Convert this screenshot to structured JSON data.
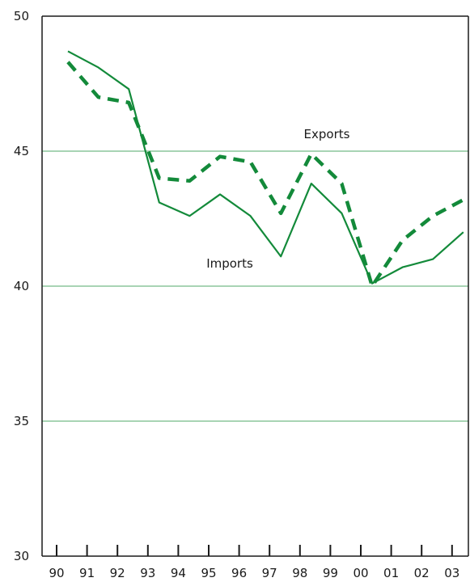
{
  "chart_data": {
    "type": "line",
    "categories": [
      "90",
      "91",
      "92",
      "93",
      "94",
      "95",
      "96",
      "97",
      "98",
      "99",
      "00",
      "01",
      "02",
      "03"
    ],
    "ylim": [
      30,
      50
    ],
    "yticks": [
      "30",
      "35",
      "40",
      "45",
      "50"
    ],
    "grid": "horizontal",
    "series": [
      {
        "name": "Exports",
        "style": "dashed",
        "color": "#138a3a",
        "values": [
          48.3,
          47.0,
          46.8,
          44.0,
          43.9,
          44.8,
          44.6,
          42.7,
          44.9,
          43.8,
          40.0,
          41.7,
          42.6,
          43.2
        ]
      },
      {
        "name": "Imports",
        "style": "solid",
        "color": "#138a3a",
        "values": [
          48.7,
          48.1,
          47.3,
          43.1,
          42.6,
          43.4,
          42.6,
          41.1,
          43.8,
          42.7,
          40.1,
          40.7,
          41.0,
          42.0
        ]
      }
    ]
  },
  "colors": {
    "line": "#138a3a",
    "grid": "#a8d4b4",
    "axis": "#1a1a1a"
  }
}
